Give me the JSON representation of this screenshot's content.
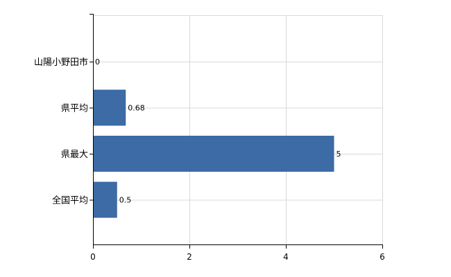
{
  "chart_data": {
    "type": "bar",
    "orientation": "horizontal",
    "categories": [
      "山陽小野田市",
      "県平均",
      "県最大",
      "全国平均"
    ],
    "values": [
      0,
      0.68,
      5,
      0.5
    ],
    "data_labels": [
      "0",
      "0.68",
      "5",
      "0.5"
    ],
    "xlim": [
      0,
      6
    ],
    "xticks": [
      0,
      2,
      4,
      6
    ],
    "xtick_labels": [
      "0",
      "2",
      "4",
      "6"
    ],
    "grid": true,
    "bar_color": "#3C6BA5",
    "grid_color": "#D9D9D9",
    "axis_color": "#000000"
  }
}
